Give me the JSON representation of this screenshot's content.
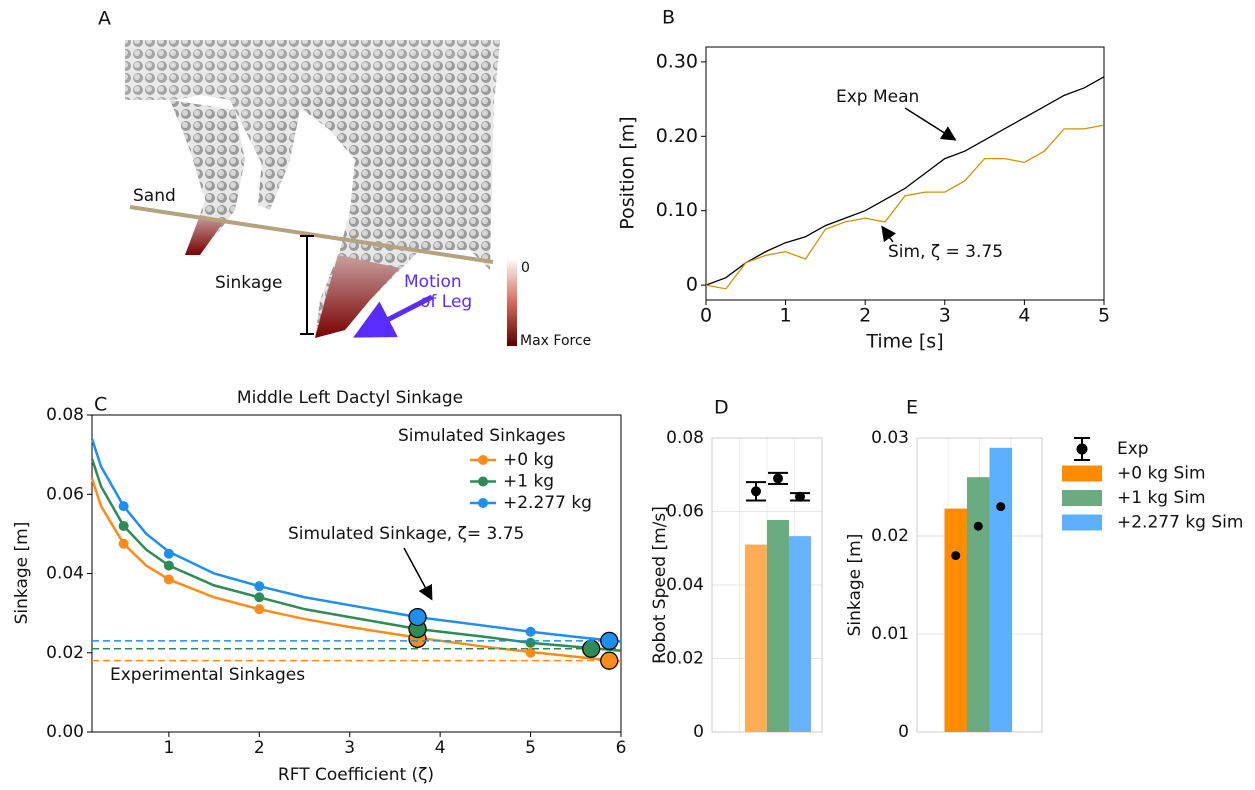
{
  "panel_a": {
    "label": "A",
    "sand": "Sand",
    "sinkage": "Sinkage",
    "motion": [
      "Motion",
      "of Leg"
    ],
    "colorbar_min": "0",
    "colorbar_max": "Max Force"
  },
  "chart_data": [
    {
      "type": "line",
      "panel_label": "B",
      "x_label": "Time [s]",
      "y_label": "Position [m]",
      "xlim": [
        0,
        5
      ],
      "ylim": [
        -0.02,
        0.32
      ],
      "xticks": [
        0,
        1,
        2,
        3,
        4,
        5
      ],
      "yticks": [
        0,
        {
          "value": 0.1,
          "label": "0.10"
        },
        {
          "value": 0.2,
          "label": "0.20"
        },
        {
          "value": 0.3,
          "label": "0.30"
        }
      ],
      "x": [
        0,
        0.25,
        0.5,
        0.75,
        1,
        1.25,
        1.5,
        1.75,
        2,
        2.25,
        2.5,
        2.75,
        3,
        3.25,
        3.5,
        3.75,
        4,
        4.25,
        4.5,
        4.75,
        5
      ],
      "series": [
        {
          "name": "Exp Mean",
          "color": "#000000",
          "values": [
            0,
            0.01,
            0.03,
            0.045,
            0.057,
            0.065,
            0.08,
            0.09,
            0.1,
            0.115,
            0.13,
            0.15,
            0.17,
            0.18,
            0.195,
            0.21,
            0.225,
            0.24,
            0.255,
            0.265,
            0.28
          ]
        },
        {
          "name": "Sim, ζ = 3.75",
          "color": "#c8960a",
          "values": [
            0,
            -0.005,
            0.03,
            0.04,
            0.045,
            0.035,
            0.075,
            0.085,
            0.09,
            0.085,
            0.12,
            0.125,
            0.125,
            0.14,
            0.17,
            0.17,
            0.165,
            0.18,
            0.21,
            0.21,
            0.215
          ]
        }
      ]
    },
    {
      "type": "line",
      "panel_label": "C",
      "title": "Middle Left Dactyl Sinkage",
      "x_label": "RFT Coefficient (ζ)",
      "y_label": "Sinkage [m]",
      "legend_title": "Simulated Sinkages",
      "annotations": [
        "Simulated Sinkage, ζ= 3.75",
        "Experimental Sinkages"
      ],
      "xlim": [
        0.15,
        6
      ],
      "ylim": [
        0,
        0.08
      ],
      "xticks": [
        1,
        2,
        3,
        4,
        5,
        6
      ],
      "yticks": [
        {
          "value": 0,
          "label": "0.00"
        },
        0.02,
        0.04,
        0.06,
        0.08
      ],
      "x": [
        0.15,
        0.25,
        0.5,
        0.75,
        1,
        1.5,
        2,
        2.5,
        3,
        3.75,
        4.5,
        5,
        5.5,
        6
      ],
      "points_x": [
        0.5,
        1,
        2,
        5
      ],
      "series": [
        {
          "name": "+0 kg",
          "color": "#ff8c1a",
          "values": [
            0.064,
            0.057,
            0.0475,
            0.042,
            0.0385,
            0.034,
            0.031,
            0.0285,
            0.0265,
            0.0238,
            0.0215,
            0.0202,
            0.019,
            0.0178
          ],
          "points": [
            0.0475,
            0.0385,
            0.031,
            0.02
          ],
          "highlight_x": [
            3.75,
            5.87
          ],
          "highlight_values": [
            0.0235,
            0.018
          ],
          "experimental": 0.018
        },
        {
          "name": "+1 kg",
          "color": "#2e8b57",
          "values": [
            0.069,
            0.062,
            0.052,
            0.046,
            0.042,
            0.037,
            0.034,
            0.031,
            0.029,
            0.026,
            0.024,
            0.0225,
            0.0215,
            0.0205
          ],
          "points": [
            0.052,
            0.042,
            0.034,
            0.0225
          ],
          "highlight_x": [
            3.75,
            5.67
          ],
          "highlight_values": [
            0.026,
            0.021
          ],
          "experimental": 0.021
        },
        {
          "name": "+2.277 kg",
          "color": "#1e8fef",
          "values": [
            0.074,
            0.067,
            0.057,
            0.05,
            0.0455,
            0.04,
            0.0368,
            0.034,
            0.032,
            0.029,
            0.0268,
            0.0253,
            0.024,
            0.0228
          ],
          "points": [
            0.057,
            0.045,
            0.0368,
            0.0253
          ],
          "highlight_x": [
            3.75,
            5.87
          ],
          "highlight_values": [
            0.029,
            0.023
          ],
          "experimental": 0.023
        }
      ]
    },
    {
      "type": "bar",
      "panel_label": "D",
      "y_label": "Robot Speed [m/s]",
      "grid": true,
      "ylim": [
        0,
        0.08
      ],
      "yticks": [
        0,
        0.02,
        0.04,
        0.06,
        0.08
      ],
      "values": [
        0.051,
        0.0577,
        0.0533
      ],
      "colors": [
        "#ffad55",
        "#6aab7f",
        "#66b3ff"
      ],
      "exp_values": [
        0.0655,
        0.069,
        0.064
      ],
      "exp_errors": [
        0.0025,
        0.0015,
        0.001
      ]
    },
    {
      "type": "bar",
      "panel_label": "E",
      "y_label": "Sinkage [m]",
      "grid": true,
      "ylim": [
        0,
        0.03
      ],
      "yticks": [
        0,
        0.01,
        0.02,
        0.03
      ],
      "values": [
        0.0228,
        0.026,
        0.029
      ],
      "colors": [
        "#ff8c00",
        "#6aab7f",
        "#5cb0ff"
      ],
      "exp_values": [
        0.018,
        0.021,
        0.023
      ],
      "legend_labels": [
        "Exp",
        "+0 kg Sim",
        "+1 kg Sim",
        "+2.277 kg Sim"
      ]
    }
  ]
}
